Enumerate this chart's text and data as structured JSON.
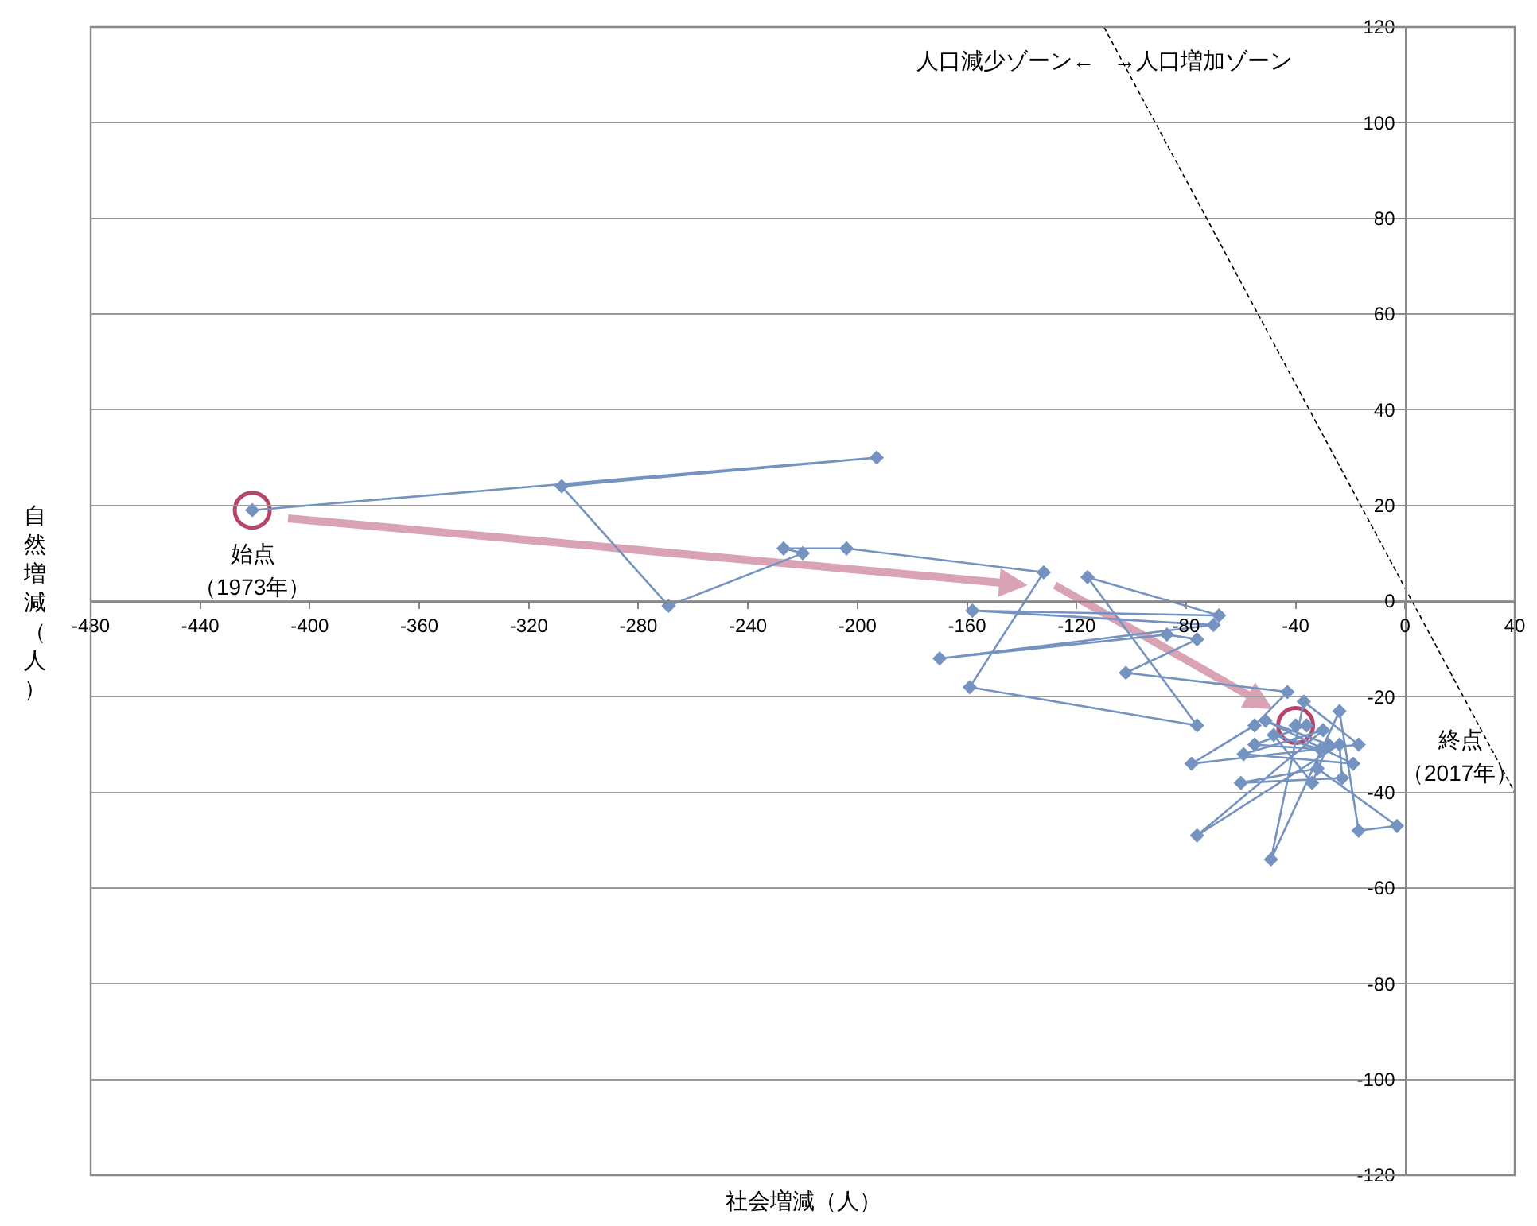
{
  "chart_data": {
    "type": "line",
    "xlabel": "社会増減（人）",
    "ylabel": "自然増減（人）",
    "xlim": [
      -480,
      40
    ],
    "xticks": [
      -480,
      -440,
      -400,
      -360,
      -320,
      -280,
      -240,
      -200,
      -160,
      -120,
      -80,
      -40,
      0,
      40
    ],
    "ylim": [
      -120,
      120
    ],
    "yticks": [
      -120,
      -100,
      -80,
      -60,
      -40,
      -20,
      0,
      20,
      40,
      60,
      80,
      100,
      120
    ],
    "grid": "y",
    "marker": "diamond",
    "series": [
      {
        "color": "#7593c0",
        "x": [
          -421,
          -193,
          -308,
          -269,
          -220,
          -227,
          -204,
          -132,
          -159,
          -76,
          -116,
          -68,
          -158,
          -70,
          -170,
          -87,
          -76,
          -102,
          -43,
          -55,
          -78,
          -17,
          -37,
          -49,
          -24,
          -17,
          -3,
          -32,
          -60,
          -23,
          -24,
          -76,
          -30,
          -59,
          -19,
          -51,
          -28,
          -34,
          -48,
          -31,
          -55,
          -36,
          -40
        ],
        "values": [
          19,
          30,
          24,
          -1,
          10,
          11,
          11,
          6,
          -18,
          -26,
          5,
          -3,
          -2,
          -5,
          -12,
          -7,
          -8,
          -15,
          -19,
          -26,
          -34,
          -30,
          -21,
          -54,
          -23,
          -48,
          -47,
          -35,
          -38,
          -37,
          -30,
          -49,
          -27,
          -32,
          -34,
          -25,
          -30,
          -38,
          -28,
          -31,
          -30,
          -26,
          -26
        ]
      },
      {
        "type": "line",
        "color": "#000000",
        "line_style": "dashed",
        "marker": "none",
        "x": [
          -110,
          40
        ],
        "values": [
          120,
          -40
        ]
      }
    ],
    "annotations": [
      "人口減少ゾーン←",
      "→人口増加ゾーン",
      "始点",
      "（1973年）",
      "終点",
      "（2017年）"
    ]
  }
}
